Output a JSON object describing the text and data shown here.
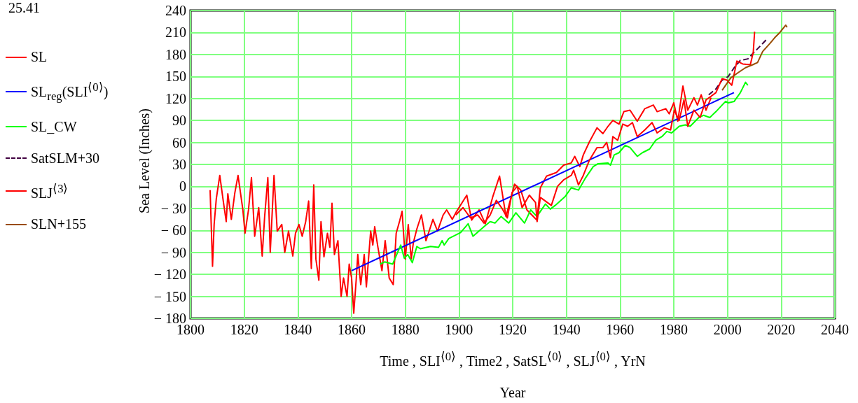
{
  "chart_data": {
    "type": "line",
    "xlabel": "Time , SLI$^{⟨0⟩}$ , Time2 , SatSL$^{⟨0⟩}$ , SLJ$^{⟨0⟩}$ , YrN",
    "ylabel": "Sea Level (Inches)",
    "annotations": [
      "25.41",
      "Year"
    ],
    "xlim": [
      1800,
      2040
    ],
    "xticks": [
      1800,
      1820,
      1840,
      1860,
      1880,
      1900,
      1920,
      1940,
      1960,
      1980,
      2000,
      2020,
      2040
    ],
    "ylim": [
      -180,
      240
    ],
    "yticks": [
      {
        "value": -180,
        "label": "− 180"
      },
      {
        "value": -150,
        "label": "− 150"
      },
      {
        "value": -120,
        "label": "− 120"
      },
      {
        "value": -90,
        "label": "− 90"
      },
      {
        "value": -60,
        "label": "− 60"
      },
      {
        "value": -30,
        "label": "− 30"
      },
      0,
      30,
      60,
      90,
      120,
      150,
      180,
      210,
      240
    ],
    "grid": true,
    "legend": "left",
    "marker": "none",
    "series": [
      {
        "name": "SL",
        "color": "#ff0000",
        "x": [
          1807.3,
          1808.2,
          1808.8,
          1809.6,
          1810.9,
          1812.2,
          1813.3,
          1813.9,
          1815.2,
          1816.5,
          1817.7,
          1819.5,
          1820.3,
          1821.6,
          1822.7,
          1823.9,
          1825.4,
          1826.7,
          1827.6,
          1828.8,
          1829.7,
          1831.1,
          1832.3,
          1834,
          1835.1,
          1836.5,
          1838.1,
          1839.1,
          1840.4,
          1841.6,
          1842.9,
          1844,
          1845,
          1845.9,
          1846.7,
          1847.8,
          1848.6,
          1849.7,
          1851,
          1851.9,
          1852.7,
          1853.6,
          1854.9,
          1856.1,
          1857,
          1858.3,
          1859.1,
          1860,
          1860.8,
          1861.7,
          1862.3,
          1863.4,
          1864.7,
          1865.5,
          1867.1,
          1867.9,
          1868.6,
          1869.8,
          1871.3,
          1872.5,
          1874,
          1875.5,
          1876.6,
          1877.9,
          1878.8,
          1880,
          1881.1,
          1882.2,
          1883,
          1884.3,
          1886,
          1887.7,
          1890.3,
          1892,
          1894.1,
          1895.4,
          1897.5,
          1898.8,
          1902.9,
          1904.7,
          1907.5,
          1909.8,
          1912.5,
          1915.1,
          1917.5,
          1920.7,
          1923,
          1925.3,
          1929,
          1930.3,
          1932.6,
          1936.3,
          1939,
          1941.8,
          1943.1,
          1945,
          1946.3,
          1948.6,
          1951.4,
          1953.6,
          1955.5,
          1957.3,
          1959.6,
          1961.4,
          1963.7,
          1966.4,
          1969.2,
          1972.4,
          1973.8,
          1977,
          1978.3,
          1980,
          1981.5,
          1983.4,
          1985.2,
          1987.5,
          1988.8,
          1990.2,
          1992,
          1993.9
        ],
        "values": [
          -5,
          -109,
          -52,
          -17,
          15,
          -20,
          -48,
          -10,
          -45,
          -9,
          15,
          -32,
          -64,
          -32,
          12,
          -68,
          -29,
          -95,
          -42,
          12,
          -90,
          15,
          -61,
          -52,
          -90,
          -61,
          -95,
          -64,
          -52,
          -68,
          -48,
          -20,
          -112,
          2,
          -99,
          -128,
          -48,
          -96,
          -64,
          -83,
          -23,
          -93,
          -74,
          -150,
          -125,
          -150,
          -106,
          -125,
          -173,
          -128,
          -93,
          -134,
          -93,
          -137,
          -61,
          -80,
          -55,
          -83,
          -115,
          -74,
          -125,
          -134,
          -64,
          -47,
          -34,
          -99,
          -52,
          -99,
          -77,
          -58,
          -39,
          -74,
          -45,
          -61,
          -39,
          -32,
          -45,
          -36,
          -12,
          -46,
          -32,
          -51,
          -15,
          14,
          -41,
          3,
          -5,
          -32,
          -46,
          -2,
          14,
          19,
          29,
          32,
          41,
          27,
          43,
          61,
          80,
          72,
          82,
          90,
          85,
          102,
          104,
          89,
          106,
          111,
          102,
          106,
          99,
          114,
          89,
          137,
          104,
          121,
          111,
          125,
          104,
          121
        ]
      },
      {
        "name": "SL$_{reg}$(SLI$^{⟨0⟩}$)",
        "color": "#0000ff",
        "x": [
          1860,
          2002.4
        ],
        "values": [
          -115,
          128
        ]
      },
      {
        "name": "SL_CW",
        "color": "#00ff00",
        "x": [
          1870.6,
          1872.3,
          1875.3,
          1878.3,
          1879.6,
          1880.9,
          1882.6,
          1884.3,
          1885.6,
          1889.4,
          1892.4,
          1893.7,
          1894.5,
          1896.2,
          1900.6,
          1903.4,
          1905.2,
          1909.3,
          1911.6,
          1913.4,
          1915.7,
          1918.5,
          1921.2,
          1924.4,
          1926.7,
          1929,
          1932.2,
          1934,
          1935.8,
          1939.5,
          1941.8,
          1944.5,
          1947.2,
          1950,
          1951.8,
          1955.5,
          1956.4,
          1957.8,
          1959.6,
          1961.9,
          1963.7,
          1966.4,
          1968.3,
          1971,
          1973.3,
          1975.6,
          1977.4,
          1979.2,
          1982,
          1984.3,
          1986.1,
          1989.3,
          1991.1,
          1993.4,
          1995.7,
          1998,
          1999.3,
          2000.3,
          2002.5,
          2004.8,
          2006.7,
          2007.6
        ],
        "values": [
          -106,
          -103,
          -106,
          -80,
          -98,
          -93,
          -104,
          -82,
          -85,
          -82,
          -83,
          -74,
          -80,
          -71,
          -63,
          -51,
          -68,
          -55,
          -48,
          -50,
          -41,
          -50,
          -36,
          -50,
          -32,
          -41,
          -24,
          -31,
          -26,
          -14,
          -2,
          -5,
          12,
          27,
          31,
          32,
          29,
          43,
          46,
          56,
          53,
          41,
          46,
          51,
          63,
          68,
          75,
          73,
          82,
          84,
          82,
          94,
          97,
          94,
          102,
          111,
          116,
          114,
          116,
          128,
          142,
          138
        ]
      },
      {
        "name": "SatSLM+30",
        "color": "#400040",
        "line_style": "dashed",
        "x": [
          1993,
          1995.7,
          1998,
          2000.3,
          2002.5,
          2004.8,
          2007.6,
          2009.4,
          2012.6,
          2014.4
        ],
        "values": [
          125,
          133,
          145,
          150,
          162,
          172,
          174,
          181,
          193,
          200
        ]
      },
      {
        "name": "SLJ$^{⟨3⟩}$",
        "color": "#ff0000",
        "x": [
          1898.8,
          1901.5,
          1904.3,
          1907,
          1909.3,
          1911.6,
          1913.9,
          1916.2,
          1918,
          1919.8,
          1921.7,
          1923.5,
          1926.2,
          1928.5,
          1929.1,
          1930.3,
          1934.4,
          1936.7,
          1939,
          1941.8,
          1942.7,
          1944.5,
          1946.3,
          1948.6,
          1951.4,
          1953.6,
          1955,
          1956.4,
          1957.3,
          1959.1,
          1961,
          1962.8,
          1964.6,
          1966.4,
          1969.2,
          1971.9,
          1973.8,
          1976.5,
          1978.8,
          1980.2,
          1982,
          1983.8,
          1985.2,
          1987.5,
          1989.8,
          1992,
          1993.9,
          1995.7,
          1998,
          1999.8,
          2001.6,
          2003.5,
          2005.7,
          2008.5,
          2009.6,
          2010.1
        ],
        "values": [
          -39,
          -29,
          -43,
          -39,
          -50,
          -39,
          -19,
          -31,
          -43,
          -8,
          0,
          -29,
          -12,
          -22,
          -48,
          -15,
          -26,
          0,
          9,
          15,
          22,
          2,
          15,
          36,
          53,
          53,
          60,
          39,
          68,
          63,
          85,
          82,
          87,
          68,
          77,
          87,
          73,
          80,
          77,
          104,
          90,
          118,
          82,
          104,
          94,
          118,
          123,
          128,
          147,
          145,
          138,
          171,
          167,
          166,
          183,
          211
        ]
      },
      {
        "name": "SLN+155",
        "color": "#994c00",
        "x": [
          1998,
          2001.2,
          2003.9,
          2006.7,
          2009.4,
          2011.2,
          2013.1,
          2015.8,
          2017.6,
          2019.5,
          2021.7,
          2022.2
        ],
        "values": [
          131,
          148,
          155,
          162,
          166,
          169,
          184,
          195,
          203,
          210,
          220,
          217
        ]
      }
    ]
  }
}
